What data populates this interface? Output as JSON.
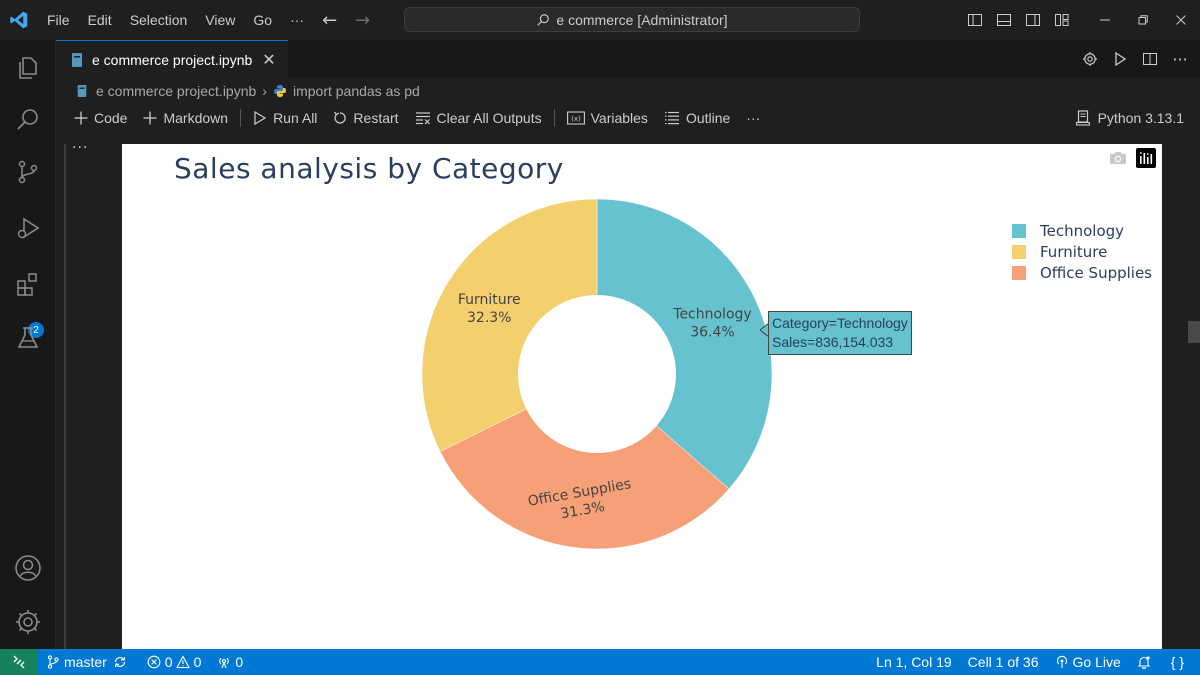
{
  "menu": {
    "items": [
      "File",
      "Edit",
      "Selection",
      "View",
      "Go"
    ],
    "more": "···"
  },
  "command_center": {
    "label": "e commerce [Administrator]"
  },
  "activity": {
    "extensions_badge": "2"
  },
  "tab": {
    "label": "e commerce project.ipynb",
    "close": "✕"
  },
  "tab_actions": {
    "more": "···"
  },
  "breadcrumb": {
    "file": "e commerce project.ipynb",
    "cell": "import pandas as pd"
  },
  "toolbar": {
    "code": "Code",
    "markdown": "Markdown",
    "run_all": "Run All",
    "restart": "Restart",
    "clear_all_outputs": "Clear All Outputs",
    "variables": "Variables",
    "outline": "Outline",
    "more": "···",
    "kernel": "Python 3.13.1"
  },
  "cell": {
    "dots": "···"
  },
  "chart_data": {
    "type": "pie",
    "title": "Sales analysis by Category",
    "hole": 0.45,
    "slices": [
      {
        "label": "Technology",
        "percent_label": "36.4%",
        "value": 36.4,
        "color": "#66c2cf"
      },
      {
        "label": "Office Supplies",
        "percent_label": "31.3%",
        "value": 31.3,
        "color": "#f6a077"
      },
      {
        "label": "Furniture",
        "percent_label": "32.3%",
        "value": 32.3,
        "color": "#f4cf6e"
      }
    ],
    "legend": [
      "Technology",
      "Furniture",
      "Office Supplies"
    ],
    "legend_position": "top-right",
    "hover": {
      "line1": "Category=Technology",
      "line2": "Sales=836,154.033"
    }
  },
  "legend_colors": {
    "Technology": "#66c2cf",
    "Furniture": "#f4cf6e",
    "Office Supplies": "#f6a077"
  },
  "status": {
    "branch": "master",
    "errors": "0",
    "warnings": "0",
    "ports": "0",
    "position": "Ln 1, Col 19",
    "cell": "Cell 1 of 36",
    "go_live": "Go Live",
    "braces": "{ }"
  },
  "colors": {
    "accent": "#0078d4",
    "remote": "#16825d",
    "plot_title": "#2a3f5f"
  }
}
